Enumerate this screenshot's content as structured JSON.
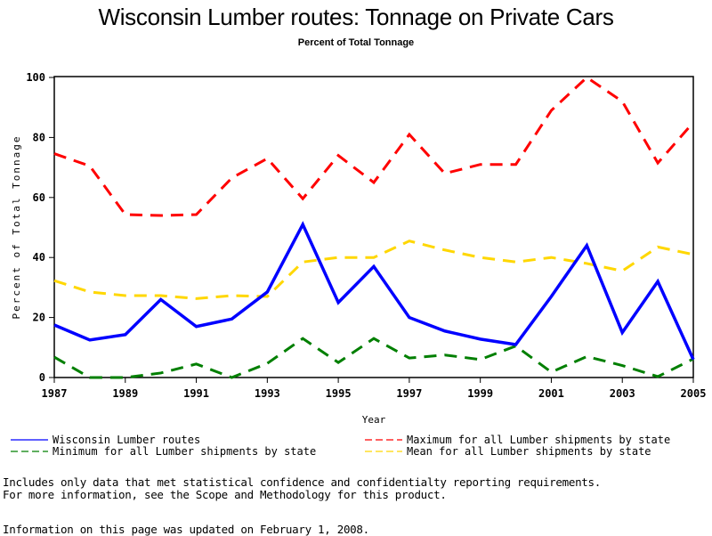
{
  "chart_data": {
    "type": "line",
    "title": "Wisconsin Lumber routes: Tonnage on Private Cars",
    "subtitle": "Percent of Total Tonnage",
    "xlabel": "Year",
    "ylabel": "Percent of Total Tonnage",
    "xlim": [
      1987,
      2005
    ],
    "ylim": [
      0,
      100
    ],
    "x": [
      1987,
      1988,
      1989,
      1990,
      1991,
      1992,
      1993,
      1994,
      1995,
      1996,
      1997,
      1998,
      1999,
      2000,
      2001,
      2002,
      2003,
      2004,
      2005
    ],
    "x_tick_labels": [
      "1987",
      "1989",
      "1991",
      "1993",
      "1995",
      "1997",
      "1999",
      "2001",
      "2003",
      "2005"
    ],
    "y_tick_labels": [
      "0",
      "20",
      "40",
      "60",
      "80",
      "100"
    ],
    "grid": false,
    "legend_position": "bottom",
    "series": [
      {
        "name": "Wisconsin Lumber routes",
        "color": "#0000ff",
        "style": "solid",
        "values": [
          17.5,
          12.5,
          14.3,
          26,
          17,
          19.5,
          28.5,
          51,
          25,
          37,
          20,
          15.5,
          12.8,
          11,
          27,
          44,
          15,
          32,
          6
        ]
      },
      {
        "name": "Maximum for all Lumber shipments by state",
        "color": "#ff0000",
        "style": "dashed",
        "values": [
          74.6,
          70.5,
          54.3,
          54,
          54.3,
          66.5,
          73,
          59.6,
          74,
          65,
          81,
          68,
          71,
          71,
          89,
          100,
          92,
          71.5,
          85
        ]
      },
      {
        "name": "Minimum for all Lumber shipments by state",
        "color": "#007f00",
        "style": "dashed",
        "values": [
          6.8,
          0,
          0,
          1.5,
          4.5,
          0,
          4.7,
          13,
          5,
          13,
          6.5,
          7.5,
          6,
          10.5,
          1.8,
          7,
          4,
          0.3,
          6.2
        ]
      },
      {
        "name": "Mean for all Lumber shipments by state",
        "color": "#ffd700",
        "style": "dashed",
        "values": [
          32.3,
          28.5,
          27.3,
          27.3,
          26.3,
          27.3,
          27,
          38.5,
          40,
          40,
          45.5,
          42.5,
          40,
          38.5,
          40,
          38,
          35.5,
          43.5,
          41
        ]
      }
    ]
  },
  "notes": {
    "line1": "Includes only data that met statistical confidence and confidentialty reporting requirements.",
    "line2": "For more information, see the Scope and Methodology for this product.",
    "updated": "Information on this page was updated on February 1, 2008."
  }
}
